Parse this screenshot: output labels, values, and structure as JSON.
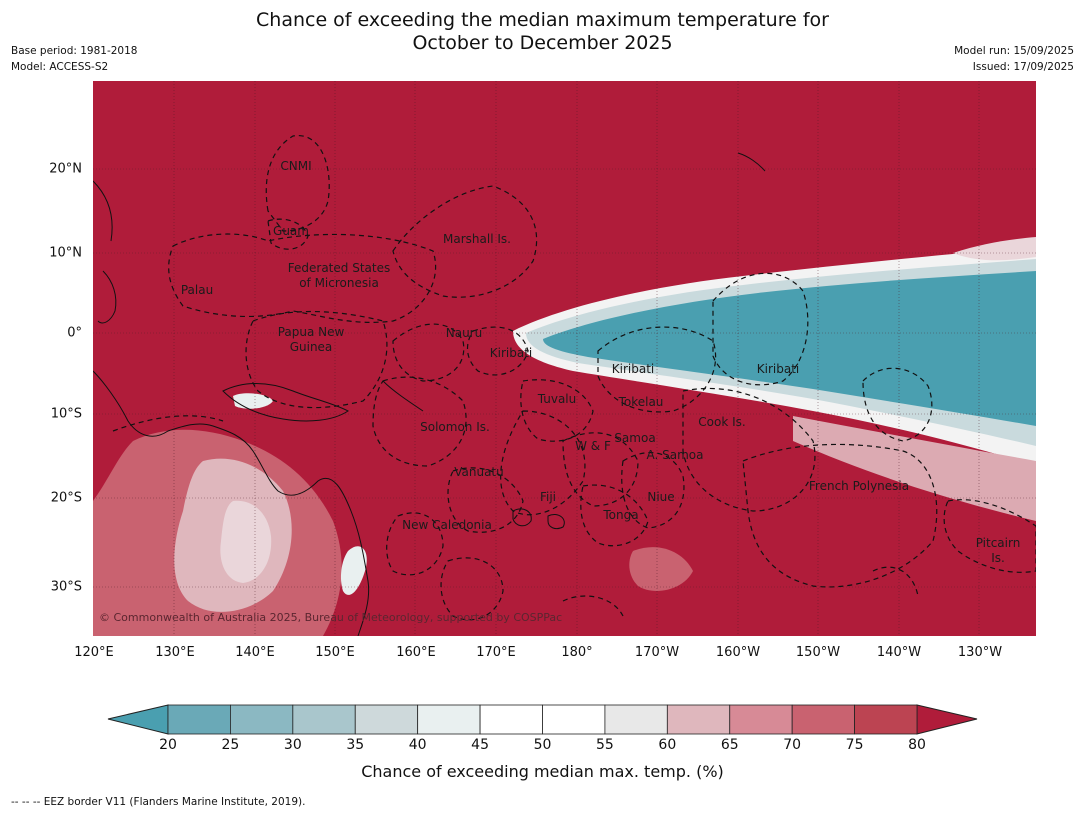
{
  "title": {
    "line1": "Chance of exceeding the median maximum temperature for",
    "line2": "October to December 2025"
  },
  "meta_left": {
    "base_period": "Base period: 1981-2018",
    "model": "Model: ACCESS-S2"
  },
  "meta_right": {
    "model_run": "Model run: 15/09/2025",
    "issued": "Issued: 17/09/2025"
  },
  "map": {
    "copyright": "© Commonwealth of Australia 2025, Bureau of Meteorology, supported by COSPPac",
    "lon_ticks": [
      "120°E",
      "130°E",
      "140°E",
      "150°E",
      "160°E",
      "170°E",
      "180°",
      "170°W",
      "160°W",
      "150°W",
      "140°W",
      "130°W"
    ],
    "lat_ticks": [
      "20°N",
      "10°N",
      "0°",
      "10°S",
      "20°S",
      "30°S"
    ],
    "regions": [
      "CNMI",
      "Guam",
      "Marshall Is.",
      "Palau",
      "Federated States",
      "of Micronesia",
      "Papua New",
      "Guinea",
      "Nauru",
      "Kiribati",
      "Kiribati",
      "Kiribati",
      "Tuvalu",
      "Tokelau",
      "Cook Is.",
      "Solomon Is.",
      "W & F",
      "Samoa",
      "A. Samoa",
      "Vanuatu",
      "Fiji",
      "Niue",
      "Tonga",
      "French Polynesia",
      "New Caledonia",
      "Pitcairn",
      "Is."
    ],
    "colors": {
      "high": "#b01c3a",
      "low": "#4a9fb0",
      "neutral": "#ffffff"
    }
  },
  "colorbar": {
    "ticks": [
      "20",
      "25",
      "30",
      "35",
      "40",
      "45",
      "50",
      "55",
      "60",
      "65",
      "70",
      "75",
      "80"
    ],
    "colors": [
      "#6aa9b7",
      "#8bb8c2",
      "#a9c6cc",
      "#ced9db",
      "#e9f0f0",
      "#ffffff",
      "#ffffff",
      "#e8e8e8",
      "#dfb7bd",
      "#d78a96",
      "#c96270",
      "#bc4452"
    ],
    "low_extend_color": "#4a9fb0",
    "high_extend_color": "#b01c3a",
    "label": "Chance of exceeding median max. temp. (%)"
  },
  "footer": "--  --  -- EEZ border V11 (Flanders Marine Institute, 2019)."
}
